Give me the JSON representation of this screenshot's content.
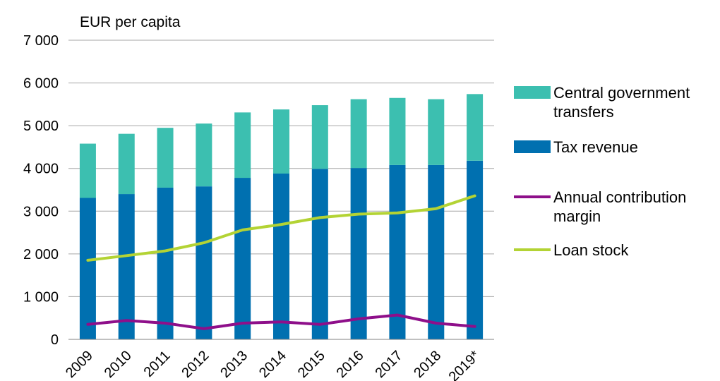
{
  "chart_data": {
    "type": "bar",
    "ylabel": "EUR per capita",
    "ylim": [
      0,
      7000
    ],
    "yticks": [
      0,
      1000,
      2000,
      3000,
      4000,
      5000,
      6000,
      7000
    ],
    "ytick_labels": [
      "0",
      "1 000",
      "2 000",
      "3 000",
      "4 000",
      "5 000",
      "6 000",
      "7 000"
    ],
    "categories": [
      "2009",
      "2010",
      "2011",
      "2012",
      "2013",
      "2014",
      "2015",
      "2016",
      "2017",
      "2018",
      "2019*"
    ],
    "stacked": true,
    "grid": "horizontal",
    "legend_position": "right",
    "series": [
      {
        "name": "Tax revenue",
        "kind": "bar",
        "color": "#0070b0",
        "values": [
          3310,
          3400,
          3550,
          3580,
          3780,
          3880,
          3990,
          4010,
          4080,
          4080,
          4180
        ]
      },
      {
        "name": "Central government transfers",
        "kind": "bar",
        "color": "#3cbfb0",
        "values": [
          1270,
          1410,
          1400,
          1470,
          1530,
          1500,
          1490,
          1610,
          1570,
          1540,
          1560
        ]
      },
      {
        "name": "Annual contribution margin",
        "kind": "line",
        "color": "#8e0f8a",
        "values": [
          350,
          440,
          380,
          250,
          380,
          410,
          350,
          480,
          570,
          380,
          300
        ]
      },
      {
        "name": "Loan stock",
        "kind": "line",
        "color": "#b3d334",
        "values": [
          1850,
          1960,
          2070,
          2260,
          2560,
          2690,
          2850,
          2930,
          2960,
          3060,
          3360
        ]
      }
    ]
  },
  "legend": {
    "items": [
      {
        "label_line1": "Central government",
        "label_line2": "transfers",
        "color": "#3cbfb0",
        "kind": "bar"
      },
      {
        "label_line1": "Tax revenue",
        "label_line2": "",
        "color": "#0070b0",
        "kind": "bar"
      },
      {
        "label_line1": "Annual contribution",
        "label_line2": "margin",
        "color": "#8e0f8a",
        "kind": "line"
      },
      {
        "label_line1": "Loan stock",
        "label_line2": "",
        "color": "#b3d334",
        "kind": "line"
      }
    ]
  }
}
